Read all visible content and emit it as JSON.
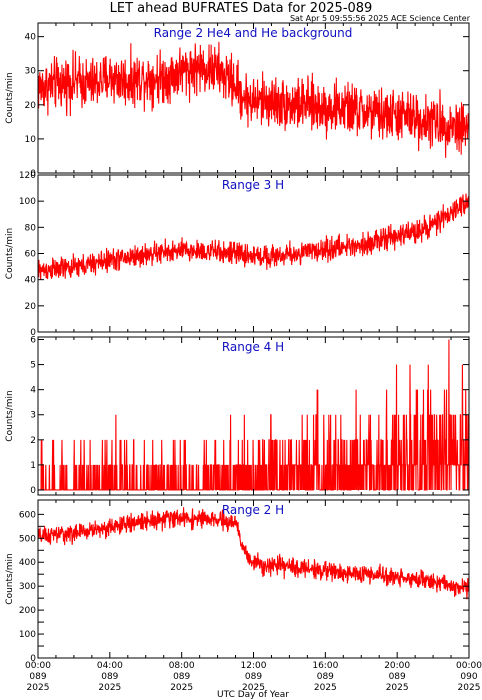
{
  "figure": {
    "title": "LET ahead BUFRATES Data for 2025-089",
    "timestamp": "Sat Apr  5 09:55:56 2025 ACE Science Center",
    "xlabel": "UTC Day of Year",
    "series_color": "#ff0000",
    "panel_label_color": "#1010c0"
  },
  "chart_data": [
    {
      "type": "line",
      "title": "Range 2 He4 and He background",
      "ylabel": "Counts/min",
      "ylim": [
        0,
        44
      ],
      "yticks": [
        0,
        10,
        20,
        30,
        40
      ],
      "xlim_hours": [
        0,
        24
      ],
      "x_hours": [
        0,
        1,
        2,
        3,
        4,
        5,
        6,
        7,
        8,
        9,
        10,
        11,
        11.5,
        12,
        13,
        14,
        15,
        16,
        17,
        18,
        19,
        20,
        21,
        22,
        23,
        24
      ],
      "values": [
        25,
        26,
        27,
        26,
        28,
        27,
        28,
        28,
        30,
        31,
        30,
        26,
        22,
        21,
        21,
        20,
        20,
        19,
        19,
        18,
        17,
        17,
        16,
        15,
        14,
        14
      ],
      "noise_amplitude": 7,
      "samples": 1440
    },
    {
      "type": "line",
      "title": "Range 3 H",
      "ylabel": "Counts/min",
      "ylim": [
        0,
        120
      ],
      "yticks": [
        0,
        20,
        40,
        60,
        80,
        100,
        120
      ],
      "xlim_hours": [
        0,
        24
      ],
      "x_hours": [
        0,
        1,
        2,
        3,
        4,
        5,
        6,
        7,
        8,
        9,
        10,
        11,
        12,
        13,
        14,
        15,
        16,
        17,
        18,
        19,
        20,
        21,
        22,
        23,
        24
      ],
      "values": [
        47,
        48,
        49,
        52,
        55,
        57,
        59,
        61,
        62,
        62,
        61,
        60,
        58,
        58,
        59,
        61,
        63,
        65,
        67,
        70,
        73,
        77,
        82,
        90,
        102
      ],
      "noise_amplitude": 8,
      "samples": 1440
    },
    {
      "type": "line",
      "title": "Range 4 H",
      "ylabel": "Counts/min",
      "ylim": [
        -0.2,
        6.1
      ],
      "yticks": [
        0,
        1,
        2,
        3,
        4,
        5,
        6
      ],
      "xlim_hours": [
        0,
        24
      ],
      "x_hours": [
        0,
        4,
        8,
        11,
        12,
        14,
        16,
        18,
        20,
        22,
        24
      ],
      "values": [
        0.3,
        0.3,
        0.35,
        0.4,
        0.55,
        0.7,
        0.85,
        1.0,
        1.15,
        1.3,
        1.5
      ],
      "integer_counts": true,
      "samples": 1440
    },
    {
      "type": "line",
      "title": "Range 2 H",
      "ylabel": "Counts/min",
      "ylim": [
        0,
        660
      ],
      "yticks": [
        0,
        50,
        100,
        150,
        200,
        250,
        300,
        350,
        400,
        450,
        500,
        550,
        600
      ],
      "ytick_labels_shown": [
        0,
        100,
        200,
        300,
        400,
        500,
        600
      ],
      "xlim_hours": [
        0,
        24
      ],
      "x_hours": [
        0,
        1,
        2,
        3,
        4,
        5,
        6,
        7,
        8,
        9,
        10,
        11,
        11.5,
        12,
        13,
        14,
        15,
        16,
        17,
        18,
        19,
        20,
        21,
        22,
        23,
        24
      ],
      "values": [
        505,
        515,
        520,
        535,
        545,
        560,
        575,
        580,
        585,
        580,
        575,
        565,
        440,
        400,
        385,
        380,
        375,
        365,
        355,
        350,
        345,
        340,
        330,
        320,
        300,
        290
      ],
      "noise_amplitude": 35,
      "samples": 1440
    }
  ],
  "x_axis": {
    "tick_hours": [
      0,
      4,
      8,
      12,
      16,
      20,
      24
    ],
    "tick_labels": [
      [
        "00:00",
        "089",
        "2025"
      ],
      [
        "04:00",
        "089",
        "2025"
      ],
      [
        "08:00",
        "089",
        "2025"
      ],
      [
        "12:00",
        "089",
        "2025"
      ],
      [
        "16:00",
        "089",
        "2025"
      ],
      [
        "20:00",
        "089",
        "2025"
      ],
      [
        "00:00",
        "090",
        "2025"
      ]
    ]
  }
}
